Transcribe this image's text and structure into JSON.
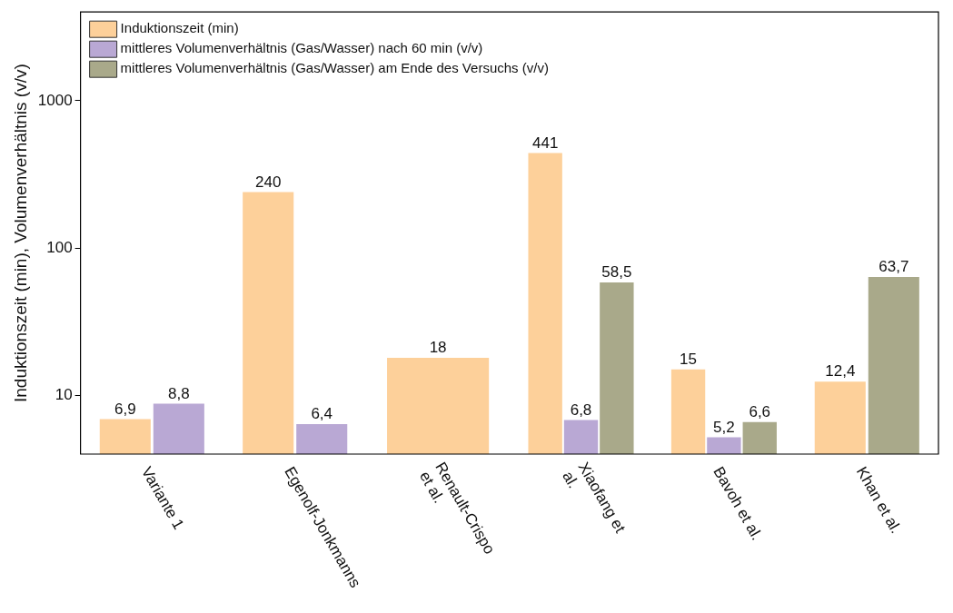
{
  "chart_data": {
    "type": "bar",
    "ylabel": "Induktionszeit (min), Volumenverhältnis (v/v)",
    "categories": [
      "Variante 1",
      "Egenolf-Jonkmanns",
      "Renault-Crispo\net al.",
      "Xiaofang et\nal.",
      "Bavoh et al.",
      "Khan et al."
    ],
    "series": [
      {
        "name": "Induktionszeit (min)",
        "color": "#fdd09a",
        "values": [
          6.9,
          240,
          18,
          441,
          15,
          12.4
        ],
        "value_labels": [
          "6,9",
          "240",
          "18",
          "441",
          "15",
          "12,4"
        ]
      },
      {
        "name": "mittleres Volumenverhältnis (Gas/Wasser) nach 60 min (v/v)",
        "color": "#b9a8d4",
        "values": [
          8.8,
          6.4,
          null,
          6.8,
          5.2,
          null
        ],
        "value_labels": [
          "8,8",
          "6,4",
          null,
          "6,8",
          "5,2",
          null
        ]
      },
      {
        "name": "mittleres Volumenverhältnis (Gas/Wasser) am Ende des Versuchs (v/v)",
        "color": "#a9a98a",
        "values": [
          null,
          null,
          null,
          58.5,
          6.6,
          63.7
        ],
        "value_labels": [
          null,
          null,
          null,
          "58,5",
          "6,6",
          "63,7"
        ]
      }
    ],
    "log": "y",
    "ylim": [
      4,
      4000
    ],
    "yticks": [
      10,
      100,
      1000
    ],
    "legend": "top left",
    "grid": false
  }
}
